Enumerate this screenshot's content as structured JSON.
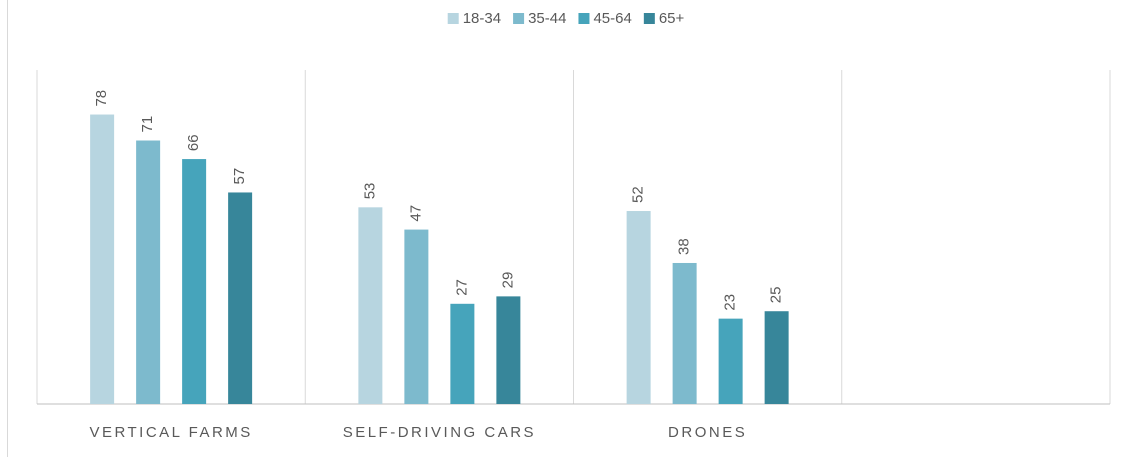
{
  "chart_data": {
    "type": "bar",
    "categories": [
      "VERTICAL FARMS",
      "SELF-DRIVING CARS",
      "DRONES",
      null
    ],
    "series": [
      {
        "name": "18-34",
        "color": "#b7d5e0",
        "values": [
          78,
          53,
          52,
          null
        ]
      },
      {
        "name": "35-44",
        "color": "#7dbacd",
        "values": [
          71,
          47,
          38,
          null
        ]
      },
      {
        "name": "45-64",
        "color": "#46a4bb",
        "values": [
          66,
          27,
          23,
          null
        ]
      },
      {
        "name": "65+",
        "color": "#37869a",
        "values": [
          57,
          29,
          25,
          null
        ]
      }
    ],
    "ylim": [
      0,
      90
    ],
    "legend": "top"
  }
}
